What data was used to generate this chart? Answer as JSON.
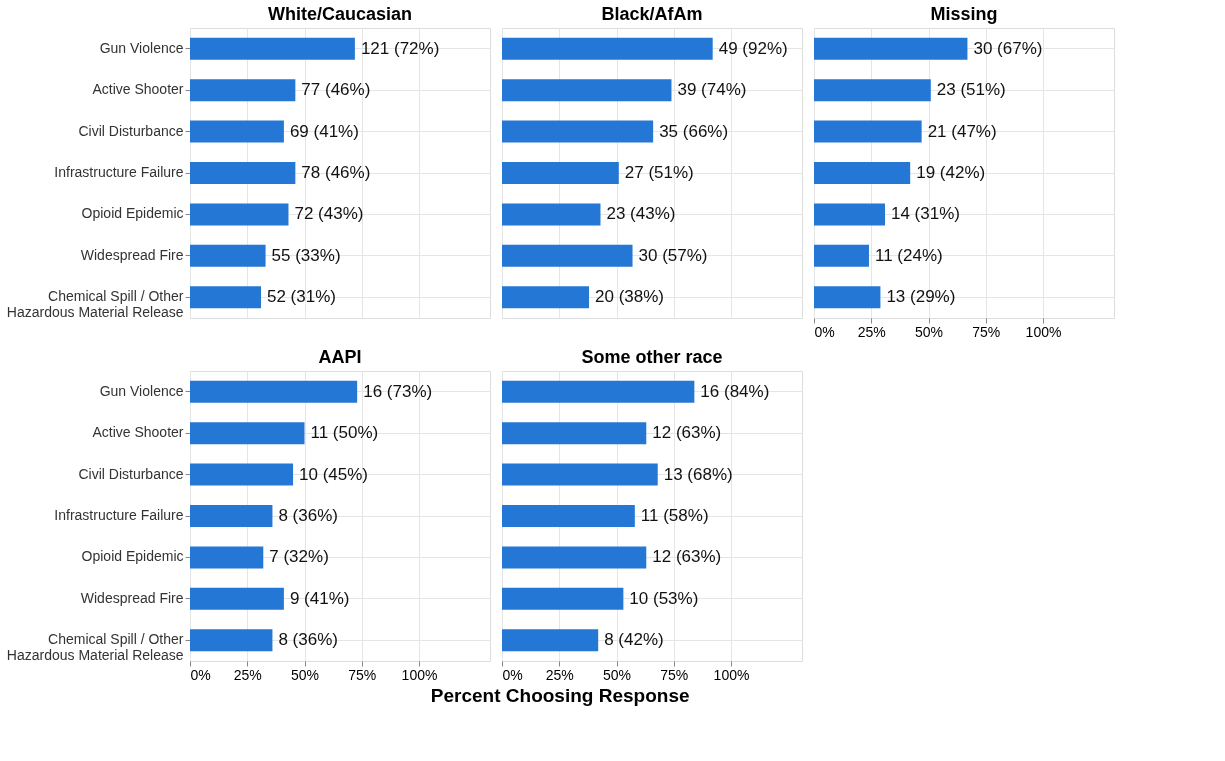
{
  "chart_data": [
    {
      "type": "bar",
      "orientation": "horizontal",
      "title": "White/Caucasian",
      "categories": [
        "Gun Violence",
        "Active Shooter",
        "Civil Disturbance",
        "Infrastructure Failure",
        "Opioid Epidemic",
        "Widespread Fire",
        "Chemical Spill / Other Hazardous Material Release"
      ],
      "values": [
        72,
        46,
        41,
        46,
        43,
        33,
        31
      ],
      "value_labels": [
        "121 (72%)",
        "77 (46%)",
        "69 (41%)",
        "78 (46%)",
        "72 (43%)",
        "55 (33%)",
        "52 (31%)"
      ],
      "color": "#2477d4",
      "xlim": [
        0,
        131
      ],
      "xticks": [
        {
          "value": 0,
          "label": null
        },
        {
          "value": 25,
          "label": null
        },
        {
          "value": 50,
          "label": null
        },
        {
          "value": 75,
          "label": null
        },
        {
          "value": 100,
          "label": null
        }
      ],
      "grid": true,
      "tick_labels": "y"
    },
    {
      "type": "bar",
      "orientation": "horizontal",
      "title": "Black/AfAm",
      "categories": [
        null,
        null,
        null,
        null,
        null,
        null,
        null
      ],
      "values": [
        92,
        74,
        66,
        51,
        43,
        57,
        38
      ],
      "value_labels": [
        "49 (92%)",
        "39 (74%)",
        "35 (66%)",
        "27 (51%)",
        "23 (43%)",
        "30 (57%)",
        "20 (38%)"
      ],
      "color": "#2477d4",
      "xlim": [
        0,
        131
      ],
      "xticks": [
        {
          "value": 0,
          "label": null
        },
        {
          "value": 25,
          "label": null
        },
        {
          "value": 50,
          "label": null
        },
        {
          "value": 75,
          "label": null
        },
        {
          "value": 100,
          "label": null
        }
      ],
      "grid": true,
      "tick_labels": false
    },
    {
      "type": "bar",
      "orientation": "horizontal",
      "title": "Missing",
      "categories": [
        null,
        null,
        null,
        null,
        null,
        null,
        null
      ],
      "values": [
        67,
        51,
        47,
        42,
        31,
        24,
        29
      ],
      "value_labels": [
        "30 (67%)",
        "23 (51%)",
        "21 (47%)",
        "19 (42%)",
        "14 (31%)",
        "11 (24%)",
        "13 (29%)"
      ],
      "color": "#2477d4",
      "xlim": [
        0,
        131
      ],
      "xticks": [
        {
          "value": 0,
          "label": "0%"
        },
        {
          "value": 25,
          "label": "25%"
        },
        {
          "value": 50,
          "label": "50%"
        },
        {
          "value": 75,
          "label": "75%"
        },
        {
          "value": 100,
          "label": "100%"
        }
      ],
      "grid": true,
      "tick_labels": "x"
    },
    {
      "type": "bar",
      "orientation": "horizontal",
      "title": "AAPI",
      "categories": [
        "Gun Violence",
        "Active Shooter",
        "Civil Disturbance",
        "Infrastructure Failure",
        "Opioid Epidemic",
        "Widespread Fire",
        "Chemical Spill / Other Hazardous Material Release"
      ],
      "values": [
        73,
        50,
        45,
        36,
        32,
        41,
        36
      ],
      "value_labels": [
        "16 (73%)",
        "11 (50%)",
        "10 (45%)",
        "8 (36%)",
        "7 (32%)",
        "9 (41%)",
        "8 (36%)"
      ],
      "color": "#2477d4",
      "xlim": [
        0,
        131
      ],
      "xticks": [
        {
          "value": 0,
          "label": "0%"
        },
        {
          "value": 25,
          "label": "25%"
        },
        {
          "value": 50,
          "label": "50%"
        },
        {
          "value": 75,
          "label": "75%"
        },
        {
          "value": 100,
          "label": "100%"
        }
      ],
      "grid": true
    },
    {
      "type": "bar",
      "orientation": "horizontal",
      "title": "Some other race",
      "xlabel": "Percent Choosing Response",
      "categories": [
        null,
        null,
        null,
        null,
        null,
        null,
        null
      ],
      "values": [
        84,
        63,
        68,
        58,
        63,
        53,
        42
      ],
      "value_labels": [
        "16 (84%)",
        "12 (63%)",
        "13 (68%)",
        "11 (58%)",
        "12 (63%)",
        "10 (53%)",
        "8 (42%)"
      ],
      "color": "#2477d4",
      "xlim": [
        0,
        131
      ],
      "xticks": [
        {
          "value": 0,
          "label": "0%"
        },
        {
          "value": 25,
          "label": "25%"
        },
        {
          "value": 50,
          "label": "50%"
        },
        {
          "value": 75,
          "label": "75%"
        },
        {
          "value": 100,
          "label": "100%"
        }
      ],
      "grid": true,
      "tick_labels": "x"
    }
  ]
}
